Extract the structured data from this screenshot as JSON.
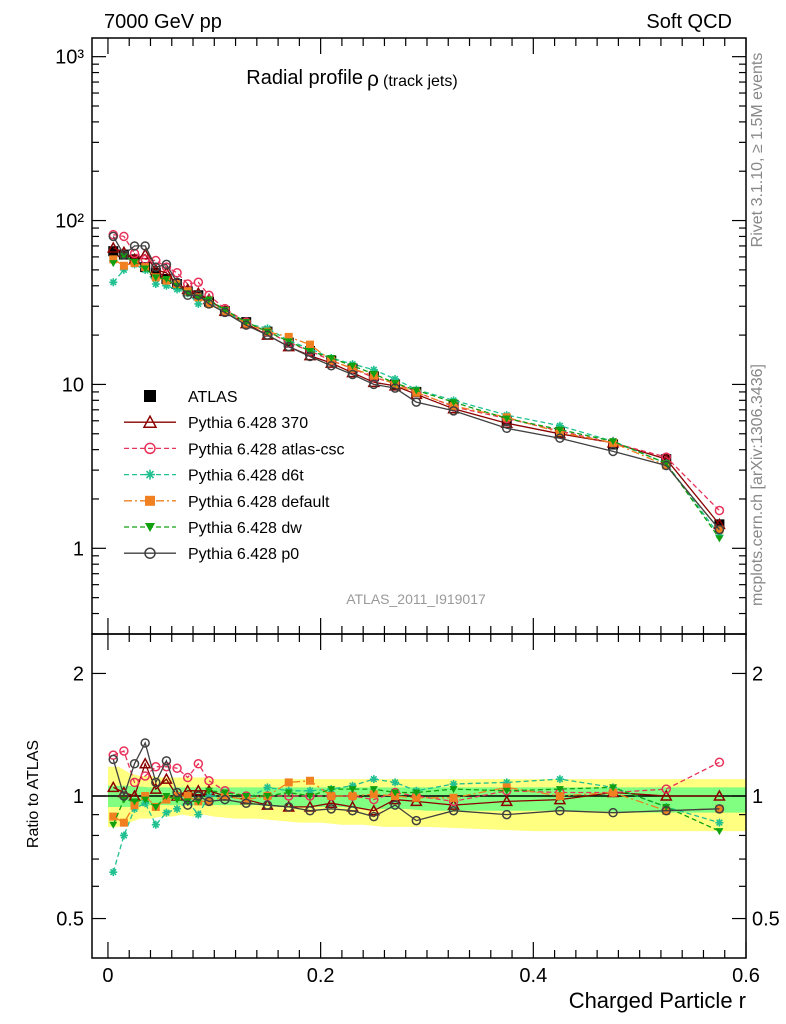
{
  "header": {
    "left": "7000 GeV pp",
    "right": "Soft QCD"
  },
  "side_labels": {
    "rivet": "Rivet 3.1.10, ≥ 1.5M events",
    "site": "mcplots.cern.ch [arXiv:1306.3436]"
  },
  "chart_data": [
    {
      "type": "line",
      "title": "Radial profile",
      "title_symbol": "ρ",
      "title_note": "(track jets)",
      "analysis_id": "ATLAS_2011_I919017",
      "xlabel": "Charged Particle r",
      "ylabel": "",
      "y_scale": "log",
      "ylim": [
        0.3,
        1300
      ],
      "xlim": [
        -0.015,
        0.6
      ],
      "ytick_labels": [
        "1",
        "10",
        "10²",
        "10³"
      ],
      "legend_position": "lower-left",
      "x": [
        0.005,
        0.015,
        0.025,
        0.035,
        0.045,
        0.055,
        0.065,
        0.075,
        0.085,
        0.095,
        0.11,
        0.13,
        0.15,
        0.17,
        0.19,
        0.21,
        0.23,
        0.25,
        0.27,
        0.29,
        0.325,
        0.375,
        0.425,
        0.475,
        0.525,
        0.575
      ],
      "series": [
        {
          "name": "ATLAS",
          "key": "atlas",
          "color": "#000000",
          "dash": "",
          "marker": "square-filled",
          "values": [
            65,
            62,
            58,
            52,
            48,
            44,
            41,
            37,
            35,
            32,
            28,
            24,
            21,
            18,
            16,
            14,
            12.5,
            11.2,
            10.0,
            9.0,
            7.5,
            6.0,
            5.1,
            4.3,
            3.5,
            1.4
          ]
        },
        {
          "name": "Pythia 6.428 370",
          "key": "p370",
          "color": "#8b0000",
          "dash": "",
          "marker": "triangle-open",
          "values": [
            68,
            64,
            58,
            62,
            50,
            48,
            41,
            38,
            36,
            33,
            28,
            23.5,
            20,
            17,
            15,
            13.5,
            11.8,
            10.3,
            9.8,
            8.7,
            7.1,
            5.8,
            5.0,
            4.4,
            3.5,
            1.4
          ]
        },
        {
          "name": "Pythia 6.428 atlas-csc",
          "key": "csc",
          "color": "#e8325a",
          "dash": "5,3",
          "marker": "circle-open",
          "values": [
            82,
            80,
            63,
            58,
            57,
            52,
            48,
            41,
            42,
            35,
            29,
            24,
            21,
            18,
            16,
            14,
            12.5,
            11,
            10.2,
            9.0,
            7.3,
            6.2,
            5.2,
            4.4,
            3.6,
            1.7
          ]
        },
        {
          "name": "Pythia 6.428 d6t",
          "key": "d6t",
          "color": "#20c090",
          "dash": "5,3",
          "marker": "star",
          "values": [
            42,
            50,
            54,
            50,
            41,
            40,
            38,
            36,
            31,
            32,
            28,
            23.5,
            22,
            18.5,
            16.5,
            14.5,
            13.3,
            12.3,
            10.8,
            9.3,
            8.0,
            6.5,
            5.6,
            4.5,
            3.3,
            1.2
          ]
        },
        {
          "name": "Pythia 6.428 default",
          "key": "def",
          "color": "#f08020",
          "dash": "8,3,2,3",
          "marker": "square-filled",
          "values": [
            58,
            53,
            55,
            52,
            45,
            43,
            41,
            37,
            34,
            31,
            28,
            23.5,
            21,
            19.5,
            17.5,
            14,
            12.5,
            11.3,
            10.0,
            8.9,
            7.4,
            6.3,
            5.1,
            4.4,
            3.2,
            1.3
          ]
        },
        {
          "name": "Pythia 6.428 dw",
          "key": "dw",
          "color": "#10a010",
          "dash": "5,3",
          "marker": "triangle-down-filled",
          "values": [
            55,
            61,
            56,
            51,
            45,
            44,
            40,
            36,
            34,
            33,
            28.5,
            24,
            21,
            18.3,
            16,
            14.5,
            13.0,
            11.6,
            10.2,
            9.2,
            7.8,
            6.2,
            5.3,
            4.5,
            3.3,
            1.15
          ]
        },
        {
          "name": "Pythia 6.428 p0",
          "key": "p0",
          "color": "#404040",
          "dash": "",
          "marker": "circle-open",
          "values": [
            80,
            62,
            70,
            70,
            52,
            54,
            42,
            35,
            35,
            31,
            27.5,
            23,
            20,
            17,
            14.8,
            13,
            11.5,
            10,
            9.5,
            7.8,
            6.9,
            5.4,
            4.7,
            3.9,
            3.2,
            1.3
          ]
        }
      ]
    },
    {
      "type": "line",
      "title": "",
      "xlabel": "Charged Particle r",
      "ylabel": "Ratio to ATLAS",
      "y_scale": "log",
      "ylim": [
        0.4,
        2.5
      ],
      "xlim": [
        -0.015,
        0.6
      ],
      "ytick_labels": [
        "0.5",
        "1",
        "2"
      ],
      "xtick_labels": [
        "0",
        "0.2",
        "0.4",
        "0.6"
      ],
      "reference_line": 1,
      "bands": [
        {
          "name": "yellow",
          "color": "#ffff80",
          "x": [
            0.0,
            0.01,
            0.02,
            0.03,
            0.04,
            0.05,
            0.06,
            0.07,
            0.08,
            0.09,
            0.1,
            0.12,
            0.14,
            0.16,
            0.18,
            0.2,
            0.22,
            0.24,
            0.26,
            0.28,
            0.3,
            0.35,
            0.4,
            0.45,
            0.5,
            0.55,
            0.6
          ],
          "upper": [
            1.18,
            1.18,
            1.14,
            1.12,
            1.12,
            1.11,
            1.11,
            1.11,
            1.11,
            1.11,
            1.1,
            1.1,
            1.1,
            1.1,
            1.1,
            1.1,
            1.1,
            1.1,
            1.1,
            1.1,
            1.1,
            1.1,
            1.1,
            1.1,
            1.1,
            1.1,
            1.1
          ],
          "lower": [
            0.84,
            0.84,
            0.86,
            0.88,
            0.88,
            0.89,
            0.89,
            0.9,
            0.89,
            0.9,
            0.89,
            0.88,
            0.88,
            0.87,
            0.86,
            0.86,
            0.85,
            0.85,
            0.84,
            0.84,
            0.84,
            0.83,
            0.82,
            0.82,
            0.82,
            0.82,
            0.82
          ]
        },
        {
          "name": "green",
          "color": "#80ff80",
          "x": [
            0.0,
            0.02,
            0.04,
            0.06,
            0.08,
            0.1,
            0.12,
            0.14,
            0.16,
            0.18,
            0.2,
            0.22,
            0.24,
            0.26,
            0.28,
            0.3,
            0.35,
            0.4,
            0.45,
            0.5,
            0.55,
            0.6
          ],
          "upper": [
            1.06,
            1.06,
            1.05,
            1.05,
            1.05,
            1.05,
            1.05,
            1.05,
            1.05,
            1.05,
            1.05,
            1.05,
            1.05,
            1.05,
            1.05,
            1.05,
            1.05,
            1.05,
            1.05,
            1.05,
            1.05,
            1.05
          ],
          "lower": [
            0.94,
            0.94,
            0.95,
            0.95,
            0.95,
            0.95,
            0.95,
            0.95,
            0.94,
            0.94,
            0.94,
            0.94,
            0.93,
            0.93,
            0.93,
            0.92,
            0.92,
            0.92,
            0.92,
            0.91,
            0.91,
            0.91
          ]
        }
      ],
      "x": [
        0.005,
        0.015,
        0.025,
        0.035,
        0.045,
        0.055,
        0.065,
        0.075,
        0.085,
        0.095,
        0.11,
        0.13,
        0.15,
        0.17,
        0.19,
        0.21,
        0.23,
        0.25,
        0.27,
        0.29,
        0.325,
        0.375,
        0.425,
        0.475,
        0.525,
        0.575
      ],
      "series": [
        {
          "name": "Pythia 6.428 370",
          "key": "p370",
          "color": "#8b0000",
          "dash": "",
          "marker": "triangle-open",
          "values": [
            1.05,
            1.02,
            1.0,
            1.2,
            1.04,
            1.1,
            1.0,
            1.03,
            1.03,
            1.03,
            1.0,
            0.98,
            0.95,
            0.94,
            0.94,
            0.96,
            0.94,
            0.92,
            0.98,
            0.97,
            0.95,
            0.97,
            0.98,
            1.02,
            1.0,
            1.0
          ]
        },
        {
          "name": "Pythia 6.428 atlas-csc",
          "key": "csc",
          "color": "#e8325a",
          "dash": "5,3",
          "marker": "circle-open",
          "values": [
            1.26,
            1.29,
            1.08,
            1.12,
            1.18,
            1.18,
            1.17,
            1.11,
            1.2,
            1.09,
            1.03,
            1.0,
            1.0,
            1.0,
            1.0,
            1.0,
            1.0,
            0.98,
            1.02,
            1.0,
            0.97,
            1.03,
            1.02,
            1.02,
            1.04,
            1.21
          ]
        },
        {
          "name": "Pythia 6.428 d6t",
          "key": "d6t",
          "color": "#20c090",
          "dash": "5,3",
          "marker": "star",
          "values": [
            0.65,
            0.8,
            0.93,
            0.96,
            0.85,
            0.91,
            0.93,
            0.97,
            0.9,
            1.0,
            1.0,
            0.98,
            1.05,
            1.03,
            1.03,
            1.04,
            1.06,
            1.1,
            1.08,
            1.03,
            1.07,
            1.08,
            1.1,
            1.05,
            0.94,
            0.86
          ]
        },
        {
          "name": "Pythia 6.428 default",
          "key": "def",
          "color": "#f08020",
          "dash": "8,3,2,3",
          "marker": "square-filled",
          "values": [
            0.89,
            0.86,
            0.95,
            1.0,
            0.94,
            0.98,
            1.0,
            1.0,
            0.97,
            0.97,
            1.0,
            0.98,
            1.0,
            1.08,
            1.09,
            1.0,
            1.0,
            1.01,
            1.0,
            0.99,
            0.99,
            1.05,
            1.0,
            1.02,
            0.92,
            0.93
          ]
        },
        {
          "name": "Pythia 6.428 dw",
          "key": "dw",
          "color": "#10a010",
          "dash": "5,3",
          "marker": "triangle-down-filled",
          "values": [
            0.85,
            0.98,
            0.97,
            0.98,
            0.94,
            1.0,
            0.98,
            0.97,
            0.97,
            1.03,
            1.02,
            1.0,
            1.0,
            1.02,
            1.0,
            1.04,
            1.04,
            1.04,
            1.02,
            1.02,
            1.04,
            1.03,
            1.04,
            1.05,
            0.94,
            0.82
          ]
        },
        {
          "name": "Pythia 6.428 p0",
          "key": "p0",
          "color": "#404040",
          "dash": "",
          "marker": "circle-open",
          "values": [
            1.23,
            1.0,
            1.2,
            1.35,
            1.08,
            1.22,
            1.02,
            0.95,
            1.0,
            0.97,
            0.98,
            0.96,
            0.95,
            0.94,
            0.92,
            0.93,
            0.92,
            0.89,
            0.95,
            0.87,
            0.92,
            0.9,
            0.92,
            0.91,
            0.92,
            0.93
          ]
        }
      ]
    }
  ]
}
